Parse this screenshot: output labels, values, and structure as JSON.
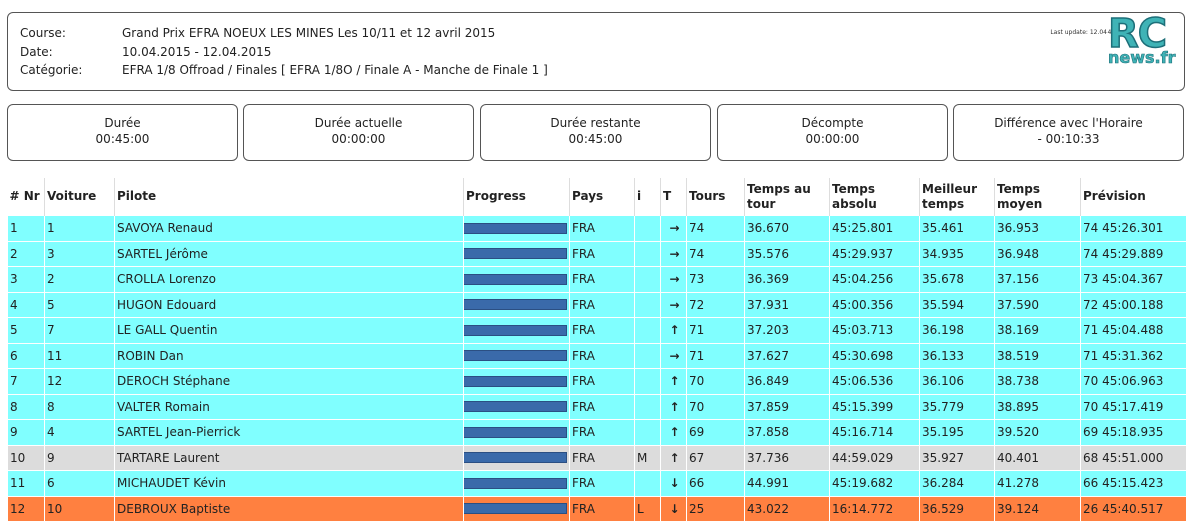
{
  "info": {
    "course_label": "Course:",
    "course": "Grand Prix EFRA NOEUX LES MINES Les 10/11 et 12 avril 2015",
    "date_label": "Date:",
    "date": "10.04.2015 - 12.04.2015",
    "category_label": "Catégorie:",
    "category": "EFRA 1/8 Offroad / Finales [ EFRA 1/8O / Finale A - Manche de Finale 1 ]",
    "last_update": "Last update: 12.04",
    "code": "484"
  },
  "logo": {
    "rc": "RC",
    "news": "news.fr"
  },
  "timers": [
    {
      "title": "Durée",
      "value": "00:45:00"
    },
    {
      "title": "Durée actuelle",
      "value": "00:00:00"
    },
    {
      "title": "Durée restante",
      "value": "00:45:00"
    },
    {
      "title": "Décompte",
      "value": "00:00:00"
    },
    {
      "title": "Différence avec l'Horaire",
      "value": "- 00:10:33"
    }
  ],
  "table": {
    "headers": [
      "# Nr",
      "Voiture",
      "Pilote",
      "Progress",
      "Pays",
      "i",
      "T",
      "Tours",
      "Temps au tour",
      "Temps absolu",
      "Meilleur temps",
      "Temps moyen",
      "Prévision"
    ],
    "rows": [
      {
        "nr": "1",
        "car": "1",
        "pilot": "SAVOYA Renaud",
        "progress": 1.0,
        "country": "FRA",
        "i": "",
        "trend": "right",
        "laps": "74",
        "lap_time": "36.670",
        "abs_time": "45:25.801",
        "best": "35.461",
        "avg": "36.953",
        "forecast": "74 45:26.301",
        "style": "cyan"
      },
      {
        "nr": "2",
        "car": "3",
        "pilot": "SARTEL Jérôme",
        "progress": 1.0,
        "country": "FRA",
        "i": "",
        "trend": "right",
        "laps": "74",
        "lap_time": "35.576",
        "abs_time": "45:29.937",
        "best": "34.935",
        "avg": "36.948",
        "forecast": "74 45:29.889",
        "style": "cyan"
      },
      {
        "nr": "3",
        "car": "2",
        "pilot": "CROLLA Lorenzo",
        "progress": 1.0,
        "country": "FRA",
        "i": "",
        "trend": "right",
        "laps": "73",
        "lap_time": "36.369",
        "abs_time": "45:04.256",
        "best": "35.678",
        "avg": "37.156",
        "forecast": "73 45:04.367",
        "style": "cyan"
      },
      {
        "nr": "4",
        "car": "5",
        "pilot": "HUGON Edouard",
        "progress": 1.0,
        "country": "FRA",
        "i": "",
        "trend": "right",
        "laps": "72",
        "lap_time": "37.931",
        "abs_time": "45:00.356",
        "best": "35.594",
        "avg": "37.590",
        "forecast": "72 45:00.188",
        "style": "cyan"
      },
      {
        "nr": "5",
        "car": "7",
        "pilot": "LE GALL Quentin",
        "progress": 1.0,
        "country": "FRA",
        "i": "",
        "trend": "up",
        "laps": "71",
        "lap_time": "37.203",
        "abs_time": "45:03.713",
        "best": "36.198",
        "avg": "38.169",
        "forecast": "71 45:04.488",
        "style": "cyan"
      },
      {
        "nr": "6",
        "car": "11",
        "pilot": "ROBIN Dan",
        "progress": 1.0,
        "country": "FRA",
        "i": "",
        "trend": "right",
        "laps": "71",
        "lap_time": "37.627",
        "abs_time": "45:30.698",
        "best": "36.133",
        "avg": "38.519",
        "forecast": "71 45:31.362",
        "style": "cyan"
      },
      {
        "nr": "7",
        "car": "12",
        "pilot": "DEROCH Stéphane",
        "progress": 1.0,
        "country": "FRA",
        "i": "",
        "trend": "up",
        "laps": "70",
        "lap_time": "36.849",
        "abs_time": "45:06.536",
        "best": "36.106",
        "avg": "38.738",
        "forecast": "70 45:06.963",
        "style": "cyan"
      },
      {
        "nr": "8",
        "car": "8",
        "pilot": "VALTER Romain",
        "progress": 1.0,
        "country": "FRA",
        "i": "",
        "trend": "up",
        "laps": "70",
        "lap_time": "37.859",
        "abs_time": "45:15.399",
        "best": "35.779",
        "avg": "38.895",
        "forecast": "70 45:17.419",
        "style": "cyan"
      },
      {
        "nr": "9",
        "car": "4",
        "pilot": "SARTEL Jean-Pierrick",
        "progress": 1.0,
        "country": "FRA",
        "i": "",
        "trend": "up",
        "laps": "69",
        "lap_time": "37.858",
        "abs_time": "45:16.714",
        "best": "35.195",
        "avg": "39.520",
        "forecast": "69 45:18.935",
        "style": "cyan"
      },
      {
        "nr": "10",
        "car": "9",
        "pilot": "TARTARE Laurent",
        "progress": 1.0,
        "country": "FRA",
        "i": "M",
        "trend": "up",
        "laps": "67",
        "lap_time": "37.736",
        "abs_time": "44:59.029",
        "best": "35.927",
        "avg": "40.401",
        "forecast": "68 45:51.000",
        "style": "grey"
      },
      {
        "nr": "11",
        "car": "6",
        "pilot": "MICHAUDET Kévin",
        "progress": 1.0,
        "country": "FRA",
        "i": "",
        "trend": "down",
        "laps": "66",
        "lap_time": "44.991",
        "abs_time": "45:19.682",
        "best": "36.284",
        "avg": "41.278",
        "forecast": "66 45:15.423",
        "style": "cyan"
      },
      {
        "nr": "12",
        "car": "10",
        "pilot": "DEBROUX Baptiste",
        "progress": 1.0,
        "country": "FRA",
        "i": "L",
        "trend": "down",
        "laps": "25",
        "lap_time": "43.022",
        "abs_time": "16:14.772",
        "best": "36.529",
        "avg": "39.124",
        "forecast": "26 45:40.517",
        "style": "orange"
      }
    ]
  },
  "colors": {
    "cyan": "#80ffff",
    "grey": "#dcdcdc",
    "orange": "#ff8040",
    "bar": "#3a6aaa"
  },
  "icons": {
    "right": "arrow-right-icon",
    "up": "arrow-up-icon",
    "down": "arrow-down-icon"
  }
}
